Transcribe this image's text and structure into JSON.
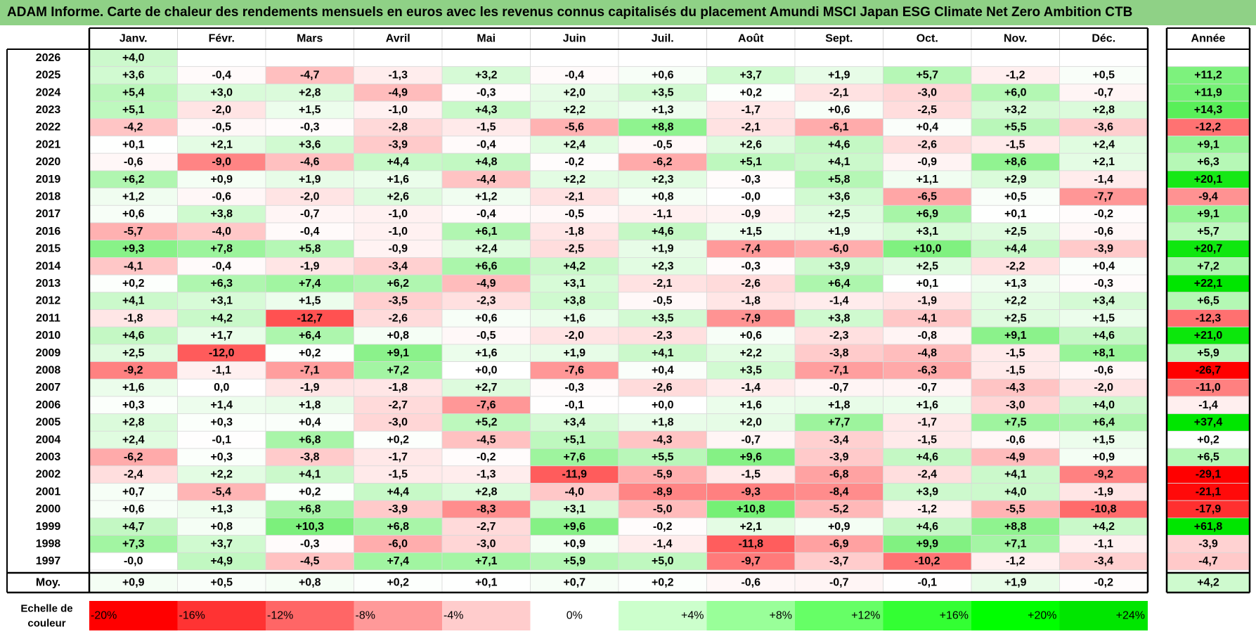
{
  "title": "ADAM Informe. Carte de chaleur des rendements mensuels en euros avec les revenus connus capitalisés du placement Amundi MSCI Japan ESG Climate Net Zero Ambition CTB",
  "chart_data": {
    "type": "heatmap",
    "columns": [
      "Janv.",
      "Févr.",
      "Mars",
      "Avril",
      "Mai",
      "Juin",
      "Juil.",
      "Août",
      "Sept.",
      "Oct.",
      "Nov.",
      "Déc."
    ],
    "year_header": "Année",
    "rows": [
      {
        "year": "2026",
        "values": [
          "+4,0",
          null,
          null,
          null,
          null,
          null,
          null,
          null,
          null,
          null,
          null,
          null
        ],
        "annual": null
      },
      {
        "year": "2025",
        "values": [
          "+3,6",
          "-0,4",
          "-4,7",
          "-1,3",
          "+3,2",
          "-0,4",
          "+0,6",
          "+3,7",
          "+1,9",
          "+5,7",
          "-1,2",
          "+0,5"
        ],
        "annual": "+11,2"
      },
      {
        "year": "2024",
        "values": [
          "+5,4",
          "+3,0",
          "+2,8",
          "-4,9",
          "-0,3",
          "+2,0",
          "+3,5",
          "+0,2",
          "-2,1",
          "-3,0",
          "+6,0",
          "-0,7"
        ],
        "annual": "+11,9"
      },
      {
        "year": "2023",
        "values": [
          "+5,1",
          "-2,0",
          "+1,5",
          "-1,0",
          "+4,3",
          "+2,2",
          "+1,3",
          "-1,7",
          "+0,6",
          "-2,5",
          "+3,2",
          "+2,8"
        ],
        "annual": "+14,3"
      },
      {
        "year": "2022",
        "values": [
          "-4,2",
          "-0,5",
          "-0,3",
          "-2,8",
          "-1,5",
          "-5,6",
          "+8,8",
          "-2,1",
          "-6,1",
          "+0,4",
          "+5,5",
          "-3,6"
        ],
        "annual": "-12,2"
      },
      {
        "year": "2021",
        "values": [
          "+0,1",
          "+2,1",
          "+3,6",
          "-3,9",
          "-0,4",
          "+2,4",
          "-0,5",
          "+2,6",
          "+4,6",
          "-2,6",
          "-1,5",
          "+2,4"
        ],
        "annual": "+9,1"
      },
      {
        "year": "2020",
        "values": [
          "-0,6",
          "-9,0",
          "-4,6",
          "+4,4",
          "+4,8",
          "-0,2",
          "-6,2",
          "+5,1",
          "+4,1",
          "-0,9",
          "+8,6",
          "+2,1"
        ],
        "annual": "+6,3"
      },
      {
        "year": "2019",
        "values": [
          "+6,2",
          "+0,9",
          "+1,9",
          "+1,6",
          "-4,4",
          "+2,2",
          "+2,3",
          "-0,3",
          "+5,8",
          "+1,1",
          "+2,9",
          "-1,4"
        ],
        "annual": "+20,1"
      },
      {
        "year": "2018",
        "values": [
          "+1,2",
          "-0,6",
          "-2,0",
          "+2,6",
          "+1,2",
          "-2,1",
          "+0,8",
          "-0,0",
          "+3,6",
          "-6,5",
          "+0,5",
          "-7,7"
        ],
        "annual": "-9,4"
      },
      {
        "year": "2017",
        "values": [
          "+0,6",
          "+3,8",
          "-0,7",
          "-1,0",
          "-0,4",
          "-0,5",
          "-1,1",
          "-0,9",
          "+2,5",
          "+6,9",
          "+0,1",
          "-0,2"
        ],
        "annual": "+9,1"
      },
      {
        "year": "2016",
        "values": [
          "-5,7",
          "-4,0",
          "-0,4",
          "-1,0",
          "+6,1",
          "-1,8",
          "+4,6",
          "+1,5",
          "+1,9",
          "+3,1",
          "+2,5",
          "-0,6"
        ],
        "annual": "+5,7"
      },
      {
        "year": "2015",
        "values": [
          "+9,3",
          "+7,8",
          "+5,8",
          "-0,9",
          "+2,4",
          "-2,5",
          "+1,9",
          "-7,4",
          "-6,0",
          "+10,0",
          "+4,4",
          "-3,9"
        ],
        "annual": "+20,7"
      },
      {
        "year": "2014",
        "values": [
          "-4,1",
          "-0,4",
          "-1,9",
          "-3,4",
          "+6,6",
          "+4,2",
          "+2,3",
          "-0,3",
          "+3,9",
          "+2,5",
          "-2,2",
          "+0,4"
        ],
        "annual": "+7,2"
      },
      {
        "year": "2013",
        "values": [
          "+0,2",
          "+6,3",
          "+7,4",
          "+6,2",
          "-4,9",
          "+3,1",
          "-2,1",
          "-2,6",
          "+6,4",
          "+0,1",
          "+1,3",
          "-0,3"
        ],
        "annual": "+22,1"
      },
      {
        "year": "2012",
        "values": [
          "+4,1",
          "+3,1",
          "+1,5",
          "-3,5",
          "-2,3",
          "+3,8",
          "-0,5",
          "-1,8",
          "-1,4",
          "-1,9",
          "+2,2",
          "+3,4"
        ],
        "annual": "+6,5"
      },
      {
        "year": "2011",
        "values": [
          "-1,8",
          "+4,2",
          "-12,7",
          "-2,6",
          "+0,6",
          "+1,6",
          "+3,5",
          "-7,9",
          "+3,8",
          "-4,1",
          "+2,5",
          "+1,5"
        ],
        "annual": "-12,3"
      },
      {
        "year": "2010",
        "values": [
          "+4,6",
          "+1,7",
          "+6,4",
          "+0,8",
          "-0,5",
          "-2,0",
          "-2,3",
          "+0,6",
          "-2,3",
          "-0,8",
          "+9,1",
          "+4,6"
        ],
        "annual": "+21,0"
      },
      {
        "year": "2009",
        "values": [
          "+2,5",
          "-12,0",
          "+0,2",
          "+9,1",
          "+1,6",
          "+1,9",
          "+4,1",
          "+2,2",
          "-3,8",
          "-4,8",
          "-1,5",
          "+8,1"
        ],
        "annual": "+5,9"
      },
      {
        "year": "2008",
        "values": [
          "-9,2",
          "-1,1",
          "-7,1",
          "+7,2",
          "+0,0",
          "-7,6",
          "+0,4",
          "+3,5",
          "-7,1",
          "-6,3",
          "-1,5",
          "-0,6"
        ],
        "annual": "-26,7"
      },
      {
        "year": "2007",
        "values": [
          "+1,6",
          "0,0",
          "-1,9",
          "-1,8",
          "+2,7",
          "-0,3",
          "-2,6",
          "-1,4",
          "-0,7",
          "-0,7",
          "-4,3",
          "-2,0"
        ],
        "annual": "-11,0"
      },
      {
        "year": "2006",
        "values": [
          "+0,3",
          "+1,4",
          "+1,8",
          "-2,7",
          "-7,6",
          "-0,1",
          "+0,0",
          "+1,6",
          "+1,8",
          "+1,6",
          "-3,0",
          "+4,0"
        ],
        "annual": "-1,4"
      },
      {
        "year": "2005",
        "values": [
          "+2,8",
          "+0,3",
          "+0,4",
          "-3,0",
          "+5,2",
          "+3,4",
          "+1,8",
          "+2,0",
          "+7,7",
          "-1,7",
          "+7,5",
          "+6,4"
        ],
        "annual": "+37,4"
      },
      {
        "year": "2004",
        "values": [
          "+2,4",
          "-0,1",
          "+6,8",
          "+0,2",
          "-4,5",
          "+5,1",
          "-4,3",
          "-0,7",
          "-3,4",
          "-1,5",
          "-0,6",
          "+1,5"
        ],
        "annual": "+0,2"
      },
      {
        "year": "2003",
        "values": [
          "-6,2",
          "+0,3",
          "-3,8",
          "-1,7",
          "-0,2",
          "+7,6",
          "+5,5",
          "+9,6",
          "-3,9",
          "+4,6",
          "-4,9",
          "+0,9"
        ],
        "annual": "+6,5"
      },
      {
        "year": "2002",
        "values": [
          "-2,4",
          "+2,2",
          "+4,1",
          "-1,5",
          "-1,3",
          "-11,9",
          "-5,9",
          "-1,5",
          "-6,8",
          "-2,4",
          "+4,1",
          "-9,2"
        ],
        "annual": "-29,1"
      },
      {
        "year": "2001",
        "values": [
          "+0,7",
          "-5,4",
          "+0,2",
          "+4,4",
          "+2,8",
          "-4,0",
          "-8,9",
          "-9,3",
          "-8,4",
          "+3,9",
          "+4,0",
          "-1,9"
        ],
        "annual": "-21,1"
      },
      {
        "year": "2000",
        "values": [
          "+0,6",
          "+1,3",
          "+6,8",
          "-3,9",
          "-8,3",
          "+3,1",
          "-5,0",
          "+10,8",
          "-5,2",
          "-1,2",
          "-5,5",
          "-10,8"
        ],
        "annual": "-17,9"
      },
      {
        "year": "1999",
        "values": [
          "+4,7",
          "+0,8",
          "+10,3",
          "+6,8",
          "-2,7",
          "+9,6",
          "-0,2",
          "+2,1",
          "+0,9",
          "+4,6",
          "+8,8",
          "+4,2"
        ],
        "annual": "+61,8"
      },
      {
        "year": "1998",
        "values": [
          "+7,3",
          "+3,7",
          "-0,3",
          "-6,0",
          "-3,0",
          "+0,9",
          "-1,4",
          "-11,8",
          "-6,9",
          "+9,9",
          "+7,1",
          "-1,1"
        ],
        "annual": "-3,9"
      },
      {
        "year": "1997",
        "values": [
          "-0,0",
          "+4,9",
          "-4,5",
          "+7,4",
          "+7,1",
          "+5,9",
          "+5,0",
          "-9,7",
          "-3,7",
          "-10,2",
          "-1,2",
          "-3,4"
        ],
        "annual": "-4,7"
      }
    ],
    "average": {
      "label": "Moy.",
      "values": [
        "+0,9",
        "+0,5",
        "+0,8",
        "+0,2",
        "+0,1",
        "+0,7",
        "+0,2",
        "-0,6",
        "-0,7",
        "-0,1",
        "+1,9",
        "-0,2"
      ],
      "annual": "+4,2"
    },
    "legend": {
      "label_line1": "Echelle de",
      "label_line2": "couleur",
      "steps": [
        {
          "label": "-20%",
          "color": "#ff0000"
        },
        {
          "label": "-16%",
          "color": "#ff3333"
        },
        {
          "label": "-12%",
          "color": "#ff6666"
        },
        {
          "label": "-8%",
          "color": "#ff9999"
        },
        {
          "label": "-4%",
          "color": "#ffcccc"
        },
        {
          "label": "0%",
          "color": "#ffffff"
        },
        {
          "label": "+4%",
          "color": "#ccffcc"
        },
        {
          "label": "+8%",
          "color": "#99ff99"
        },
        {
          "label": "+12%",
          "color": "#66ff66"
        },
        {
          "label": "+16%",
          "color": "#33ff33"
        },
        {
          "label": "+20%",
          "color": "#00ff00"
        },
        {
          "label": "+24%",
          "color": "#00e600"
        }
      ]
    },
    "colors": {
      "title_bg": "#8fd186",
      "negative_max": "#ff0000",
      "positive_max": "#00e600",
      "neutral": "#ffffff"
    }
  }
}
